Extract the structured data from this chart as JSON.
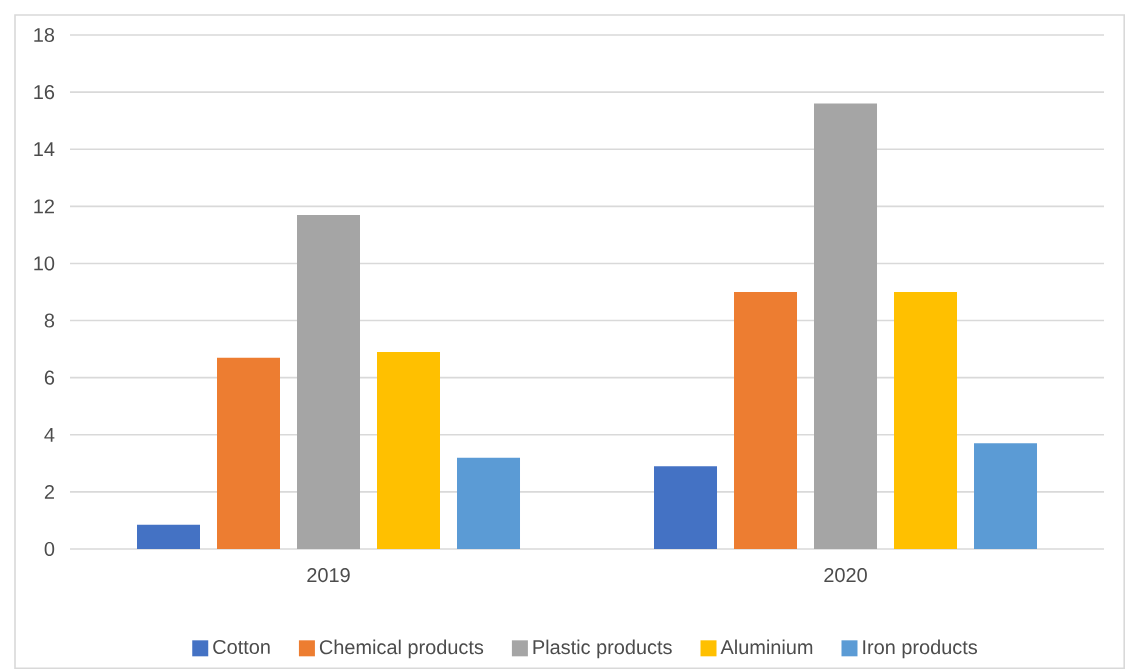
{
  "chart_data": {
    "type": "bar",
    "categories": [
      "2019",
      "2020"
    ],
    "series": [
      {
        "name": "Cotton",
        "color": "#4472c4",
        "values": [
          0.85,
          2.9
        ]
      },
      {
        "name": "Chemical products",
        "color": "#ed7d31",
        "values": [
          6.7,
          9.0
        ]
      },
      {
        "name": "Plastic products",
        "color": "#a5a5a5",
        "values": [
          11.7,
          15.6
        ]
      },
      {
        "name": "Aluminium",
        "color": "#ffc000",
        "values": [
          6.9,
          9.0
        ]
      },
      {
        "name": "Iron products",
        "color": "#5b9bd5",
        "values": [
          3.2,
          3.7
        ]
      }
    ],
    "ylim": [
      0,
      18
    ],
    "yticks": [
      0,
      2,
      4,
      6,
      8,
      10,
      12,
      14,
      16,
      18
    ],
    "grid": "y",
    "legend": "bottom"
  }
}
